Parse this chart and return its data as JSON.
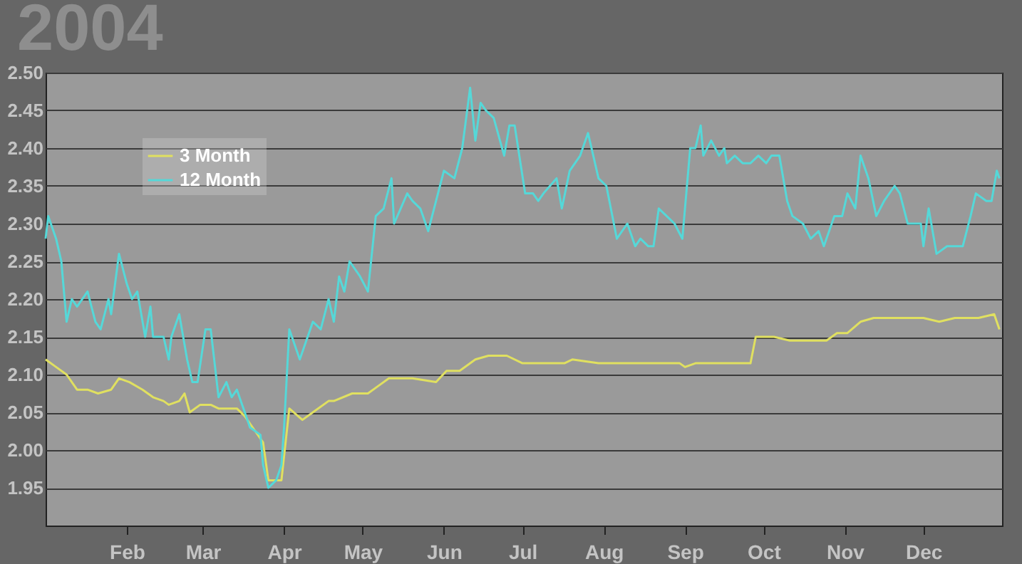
{
  "chart_data": {
    "type": "line",
    "title": "2004",
    "xlim": [
      "2004-01-01",
      "2004-12-31"
    ],
    "xticks": [
      {
        "value": "2004-02-01",
        "label": "Feb"
      },
      {
        "value": "2004-03-01",
        "label": "Mar"
      },
      {
        "value": "2004-04-01",
        "label": "Apr"
      },
      {
        "value": "2004-05-01",
        "label": "May"
      },
      {
        "value": "2004-06-01",
        "label": "Jun"
      },
      {
        "value": "2004-07-01",
        "label": "Jul"
      },
      {
        "value": "2004-08-01",
        "label": "Aug"
      },
      {
        "value": "2004-09-01",
        "label": "Sep"
      },
      {
        "value": "2004-10-01",
        "label": "Oct"
      },
      {
        "value": "2004-11-01",
        "label": "Nov"
      },
      {
        "value": "2004-12-01",
        "label": "Dec"
      }
    ],
    "ylim": [
      1.9,
      2.5
    ],
    "yticks": [
      {
        "value": 1.95,
        "label": "1.95"
      },
      {
        "value": 2.0,
        "label": "2.00"
      },
      {
        "value": 2.05,
        "label": "2.05"
      },
      {
        "value": 2.1,
        "label": "2.10"
      },
      {
        "value": 2.15,
        "label": "2.15"
      },
      {
        "value": 2.2,
        "label": "2.20"
      },
      {
        "value": 2.25,
        "label": "2.25"
      },
      {
        "value": 2.3,
        "label": "2.30"
      },
      {
        "value": 2.35,
        "label": "2.35"
      },
      {
        "value": 2.4,
        "label": "2.40"
      },
      {
        "value": 2.45,
        "label": "2.45"
      },
      {
        "value": 2.5,
        "label": "2.50"
      }
    ],
    "grid": "y",
    "legend": "top left",
    "marker": "none",
    "line_style": "solid",
    "series": [
      {
        "name": "3 Month",
        "color": "#e0e060",
        "x": [
          "2004-01-01",
          "2004-01-05",
          "2004-01-09",
          "2004-01-13",
          "2004-01-17",
          "2004-01-21",
          "2004-01-26",
          "2004-01-29",
          "2004-02-02",
          "2004-02-07",
          "2004-02-11",
          "2004-02-15",
          "2004-02-17",
          "2004-02-21",
          "2004-02-23",
          "2004-02-25",
          "2004-02-29",
          "2004-03-04",
          "2004-03-07",
          "2004-03-14",
          "2004-03-17",
          "2004-03-21",
          "2004-03-24",
          "2004-03-26",
          "2004-03-31",
          "2004-04-03",
          "2004-04-08",
          "2004-04-12",
          "2004-04-18",
          "2004-04-20",
          "2004-04-27",
          "2004-05-03",
          "2004-05-07",
          "2004-05-11",
          "2004-05-20",
          "2004-05-29",
          "2004-06-02",
          "2004-06-07",
          "2004-06-13",
          "2004-06-18",
          "2004-06-25",
          "2004-07-01",
          "2004-07-17",
          "2004-07-20",
          "2004-07-30",
          "2004-08-08",
          "2004-08-17",
          "2004-08-30",
          "2004-09-01",
          "2004-09-05",
          "2004-09-26",
          "2004-09-28",
          "2004-10-05",
          "2004-10-11",
          "2004-10-25",
          "2004-10-29",
          "2004-11-02",
          "2004-11-07",
          "2004-11-12",
          "2004-11-23",
          "2004-12-01",
          "2004-12-07",
          "2004-12-13",
          "2004-12-22",
          "2004-12-28",
          "2004-12-30"
        ],
        "values": [
          2.12,
          2.11,
          2.1,
          2.08,
          2.08,
          2.075,
          2.08,
          2.095,
          2.09,
          2.08,
          2.07,
          2.065,
          2.06,
          2.065,
          2.075,
          2.05,
          2.06,
          2.06,
          2.055,
          2.055,
          2.045,
          2.025,
          2.01,
          1.96,
          1.96,
          2.055,
          2.04,
          2.05,
          2.065,
          2.065,
          2.075,
          2.075,
          2.085,
          2.095,
          2.095,
          2.09,
          2.105,
          2.105,
          2.12,
          2.125,
          2.125,
          2.115,
          2.115,
          2.12,
          2.115,
          2.115,
          2.115,
          2.115,
          2.11,
          2.115,
          2.115,
          2.15,
          2.15,
          2.145,
          2.145,
          2.155,
          2.155,
          2.17,
          2.175,
          2.175,
          2.175,
          2.17,
          2.175,
          2.175,
          2.18,
          2.16
        ]
      },
      {
        "name": "12 Month",
        "color": "#55d8d8",
        "x": [
          "2004-01-01",
          "2004-01-02",
          "2004-01-05",
          "2004-01-07",
          "2004-01-09",
          "2004-01-11",
          "2004-01-13",
          "2004-01-17",
          "2004-01-20",
          "2004-01-22",
          "2004-01-25",
          "2004-01-26",
          "2004-01-29",
          "2004-02-01",
          "2004-02-03",
          "2004-02-05",
          "2004-02-08",
          "2004-02-10",
          "2004-02-11",
          "2004-02-15",
          "2004-02-17",
          "2004-02-18",
          "2004-02-21",
          "2004-02-24",
          "2004-02-26",
          "2004-02-28",
          "2004-03-02",
          "2004-03-04",
          "2004-03-07",
          "2004-03-10",
          "2004-03-12",
          "2004-03-14",
          "2004-03-17",
          "2004-03-19",
          "2004-03-23",
          "2004-03-24",
          "2004-03-26",
          "2004-03-29",
          "2004-03-31",
          "2004-04-01",
          "2004-04-03",
          "2004-04-07",
          "2004-04-12",
          "2004-04-15",
          "2004-04-18",
          "2004-04-20",
          "2004-04-22",
          "2004-04-24",
          "2004-04-26",
          "2004-04-30",
          "2004-05-03",
          "2004-05-06",
          "2004-05-09",
          "2004-05-12",
          "2004-05-13",
          "2004-05-18",
          "2004-05-20",
          "2004-05-23",
          "2004-05-26",
          "2004-05-29",
          "2004-06-01",
          "2004-06-05",
          "2004-06-08",
          "2004-06-11",
          "2004-06-13",
          "2004-06-15",
          "2004-06-17",
          "2004-06-20",
          "2004-06-24",
          "2004-06-26",
          "2004-06-28",
          "2004-07-02",
          "2004-07-05",
          "2004-07-07",
          "2004-07-09",
          "2004-07-14",
          "2004-07-16",
          "2004-07-19",
          "2004-07-23",
          "2004-07-26",
          "2004-07-30",
          "2004-08-02",
          "2004-08-06",
          "2004-08-10",
          "2004-08-13",
          "2004-08-15",
          "2004-08-18",
          "2004-08-20",
          "2004-08-22",
          "2004-08-25",
          "2004-08-28",
          "2004-08-31",
          "2004-09-03",
          "2004-09-05",
          "2004-09-07",
          "2004-09-08",
          "2004-09-11",
          "2004-09-14",
          "2004-09-16",
          "2004-09-17",
          "2004-09-20",
          "2004-09-23",
          "2004-09-26",
          "2004-09-29",
          "2004-10-02",
          "2004-10-04",
          "2004-10-07",
          "2004-10-10",
          "2004-10-12",
          "2004-10-16",
          "2004-10-19",
          "2004-10-22",
          "2004-10-24",
          "2004-10-28",
          "2004-10-31",
          "2004-11-02",
          "2004-11-05",
          "2004-11-07",
          "2004-11-10",
          "2004-11-13",
          "2004-11-16",
          "2004-11-20",
          "2004-11-22",
          "2004-11-25",
          "2004-11-30",
          "2004-12-01",
          "2004-12-03",
          "2004-12-06",
          "2004-12-10",
          "2004-12-12",
          "2004-12-16",
          "2004-12-19",
          "2004-12-21",
          "2004-12-25",
          "2004-12-27",
          "2004-12-29",
          "2004-12-30"
        ],
        "values": [
          2.28,
          2.31,
          2.28,
          2.25,
          2.17,
          2.2,
          2.19,
          2.21,
          2.17,
          2.16,
          2.2,
          2.18,
          2.26,
          2.22,
          2.2,
          2.21,
          2.15,
          2.19,
          2.15,
          2.15,
          2.12,
          2.15,
          2.18,
          2.12,
          2.09,
          2.09,
          2.16,
          2.16,
          2.07,
          2.09,
          2.07,
          2.08,
          2.05,
          2.03,
          2.02,
          1.98,
          1.95,
          1.96,
          1.98,
          2.03,
          2.16,
          2.12,
          2.17,
          2.16,
          2.2,
          2.17,
          2.23,
          2.21,
          2.25,
          2.23,
          2.21,
          2.31,
          2.32,
          2.36,
          2.3,
          2.34,
          2.33,
          2.32,
          2.29,
          2.33,
          2.37,
          2.36,
          2.4,
          2.48,
          2.41,
          2.46,
          2.45,
          2.44,
          2.39,
          2.43,
          2.43,
          2.34,
          2.34,
          2.33,
          2.34,
          2.36,
          2.32,
          2.37,
          2.39,
          2.42,
          2.36,
          2.35,
          2.28,
          2.3,
          2.27,
          2.28,
          2.27,
          2.27,
          2.32,
          2.31,
          2.3,
          2.28,
          2.4,
          2.4,
          2.43,
          2.39,
          2.41,
          2.39,
          2.4,
          2.38,
          2.39,
          2.38,
          2.38,
          2.39,
          2.38,
          2.39,
          2.39,
          2.33,
          2.31,
          2.3,
          2.28,
          2.29,
          2.27,
          2.31,
          2.31,
          2.34,
          2.32,
          2.39,
          2.36,
          2.31,
          2.33,
          2.35,
          2.34,
          2.3,
          2.3,
          2.27,
          2.32,
          2.26,
          2.27,
          2.27,
          2.27,
          2.31,
          2.34,
          2.33,
          2.33,
          2.37,
          2.36
        ]
      }
    ]
  }
}
